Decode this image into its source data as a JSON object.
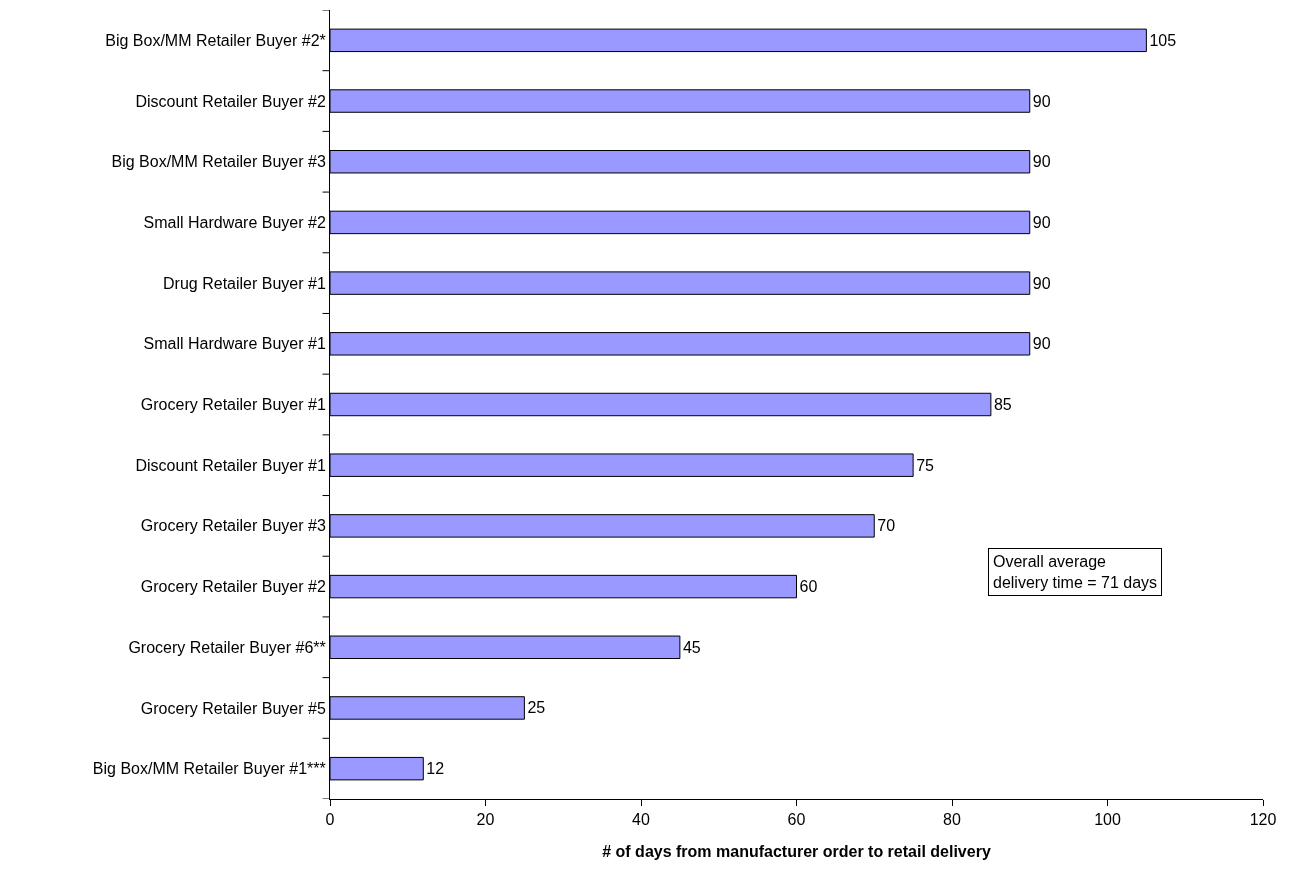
{
  "chart_data": {
    "type": "bar",
    "orientation": "horizontal",
    "categories": [
      "Big Box/MM Retailer Buyer #2*",
      "Discount Retailer Buyer #2",
      "Big Box/MM Retailer Buyer #3",
      "Small Hardware Buyer #2",
      "Drug Retailer Buyer #1",
      "Small Hardware Buyer #1",
      "Grocery Retailer Buyer #1",
      "Discount Retailer Buyer #1",
      "Grocery Retailer Buyer #3",
      "Grocery Retailer Buyer #2",
      "Grocery Retailer Buyer #6**",
      "Grocery Retailer Buyer #5",
      "Big Box/MM Retailer Buyer #1***"
    ],
    "values": [
      105,
      90,
      90,
      90,
      90,
      90,
      85,
      75,
      70,
      60,
      45,
      25,
      12
    ],
    "color": "#9999ff",
    "data_labels": true,
    "xlabel": "# of days from manufacturer order to retail delivery",
    "xlim": [
      0,
      120
    ],
    "xticks": [
      0,
      20,
      40,
      60,
      80,
      100,
      120
    ],
    "grid": false,
    "annotations": [
      "Overall average\ndelivery time = 71 days"
    ]
  }
}
